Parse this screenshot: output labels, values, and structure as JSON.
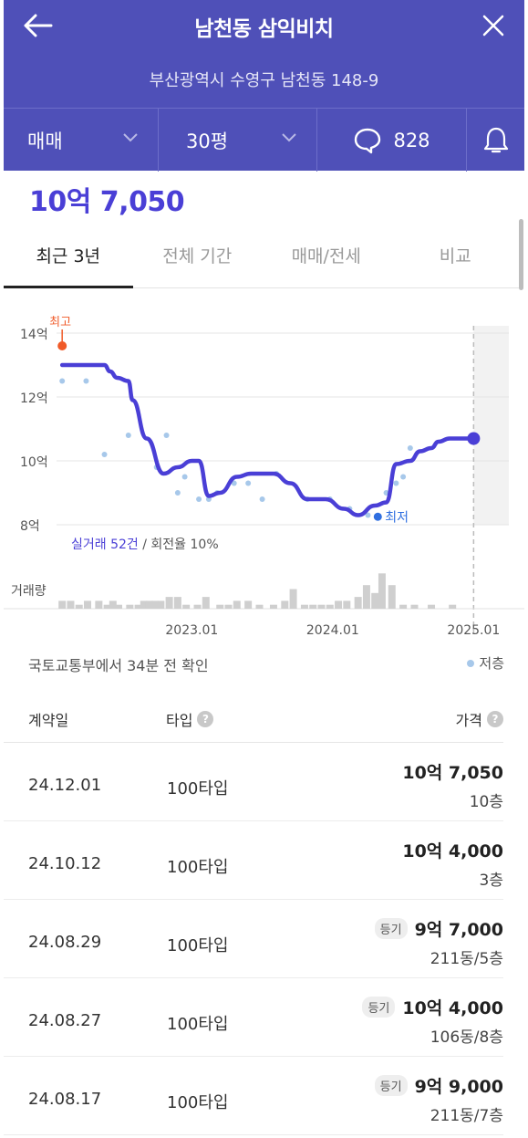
{
  "header": {
    "title": "남천동 삼익비치",
    "address": "부산광역시 수영구 남천동 148-9",
    "trade_type": "매매",
    "size": "30평",
    "comment_count": "828"
  },
  "current_price": "10억 7,050",
  "tabs": [
    {
      "label": "최근 3년",
      "active": true
    },
    {
      "label": "전체 기간",
      "active": false
    },
    {
      "label": "매매/전세",
      "active": false
    },
    {
      "label": "비교",
      "active": false
    }
  ],
  "chart_data": {
    "type": "line",
    "y_tick_labels": [
      "14억",
      "12억",
      "10억",
      "8억"
    ],
    "y_ticks": [
      14,
      12,
      10,
      8
    ],
    "ylim": [
      8,
      14
    ],
    "x_tick_labels": [
      "2023.01",
      "2024.01",
      "2025.01"
    ],
    "x_ticks": [
      2023.0,
      2024.0,
      2025.0
    ],
    "xlim": [
      2022.04,
      2025.25
    ],
    "forecast_start": 2025.0,
    "max_label": "최고",
    "min_label": "최저",
    "max_point": {
      "x": 2022.08,
      "y": 13.6
    },
    "min_point": {
      "x": 2024.32,
      "y": 8.25
    },
    "current_point": {
      "x": 2025.0,
      "y": 10.7
    },
    "trend": {
      "x": [
        2022.08,
        2022.2,
        2022.38,
        2022.42,
        2022.47,
        2022.55,
        2022.58,
        2022.68,
        2022.8,
        2022.9,
        2023.0,
        2023.05,
        2023.12,
        2023.2,
        2023.32,
        2023.42,
        2023.52,
        2023.58,
        2023.7,
        2023.82,
        2023.95,
        2024.08,
        2024.18,
        2024.3,
        2024.38,
        2024.45,
        2024.55,
        2024.62,
        2024.7,
        2024.75,
        2024.83,
        2024.88,
        2024.93,
        2025.0
      ],
      "y": [
        13.0,
        13.0,
        13.0,
        12.8,
        12.6,
        12.5,
        11.9,
        10.7,
        9.6,
        9.8,
        10.0,
        10.0,
        8.9,
        9.0,
        9.5,
        9.6,
        9.6,
        9.6,
        9.3,
        8.8,
        8.8,
        8.5,
        8.3,
        8.6,
        8.7,
        9.9,
        10.0,
        10.3,
        10.4,
        10.6,
        10.7,
        10.7,
        10.7,
        10.7
      ]
    },
    "low_floor_points": {
      "x": [
        2022.08,
        2022.25,
        2022.38,
        2022.55,
        2022.75,
        2022.82,
        2022.9,
        2022.95,
        2023.05,
        2023.12,
        2023.18,
        2023.3,
        2023.4,
        2023.5,
        2023.6,
        2023.82,
        2023.98,
        2024.12,
        2024.25,
        2024.38,
        2024.45,
        2024.5,
        2024.55
      ],
      "y": [
        12.5,
        12.5,
        10.2,
        10.8,
        9.8,
        10.8,
        9.0,
        9.5,
        8.8,
        8.8,
        9.0,
        9.3,
        9.3,
        8.8,
        9.6,
        8.8,
        8.8,
        8.5,
        8.3,
        9.0,
        9.3,
        9.5,
        10.4
      ]
    },
    "annotation": {
      "count": "실거래 52건",
      "rest": " / 회전율 10%"
    },
    "volume_label": "거래량",
    "volume": {
      "x": [
        2022.08,
        2022.14,
        2022.2,
        2022.26,
        2022.34,
        2022.4,
        2022.44,
        2022.48,
        2022.56,
        2022.62,
        2022.66,
        2022.7,
        2022.74,
        2022.78,
        2022.84,
        2022.9,
        2022.96,
        2023.04,
        2023.1,
        2023.2,
        2023.26,
        2023.32,
        2023.4,
        2023.48,
        2023.58,
        2023.66,
        2023.72,
        2023.8,
        2023.86,
        2023.92,
        2023.98,
        2024.04,
        2024.1,
        2024.18,
        2024.24,
        2024.3,
        2024.35,
        2024.42,
        2024.5,
        2024.58,
        2024.7,
        2024.85
      ],
      "v": [
        2,
        2,
        1,
        2,
        2,
        1,
        2,
        1,
        1,
        1,
        2,
        2,
        2,
        2,
        3,
        3,
        1,
        1,
        3,
        1,
        1,
        2,
        2,
        1,
        1,
        2,
        5,
        1,
        1,
        1,
        1,
        2,
        2,
        3,
        6,
        4,
        9,
        6,
        1,
        1,
        1,
        1
      ]
    }
  },
  "confirm_text": "국토교통부에서 34분 전 확인",
  "legend_low": "저층",
  "table": {
    "col_date": "계약일",
    "col_type": "타입",
    "col_price": "가격",
    "rows": [
      {
        "date": "24.12.01",
        "type": "100타입",
        "price": "10억 7,050",
        "floor": "10층",
        "badge": ""
      },
      {
        "date": "24.10.12",
        "type": "100타입",
        "price": "10억 4,000",
        "floor": "3층",
        "badge": ""
      },
      {
        "date": "24.08.29",
        "type": "100타입",
        "price": "9억 7,000",
        "floor": "211동/5층",
        "badge": "등기"
      },
      {
        "date": "24.08.27",
        "type": "100타입",
        "price": "10억 4,000",
        "floor": "106동/8층",
        "badge": "등기"
      },
      {
        "date": "24.08.17",
        "type": "100타입",
        "price": "9억 9,000",
        "floor": "211동/7층",
        "badge": "등기"
      }
    ]
  },
  "colors": {
    "header": "#4f50b8",
    "accent": "#4a3fd6",
    "max": "#f05a28",
    "min": "#2f6fe0",
    "dots": "#a7c8ea"
  }
}
